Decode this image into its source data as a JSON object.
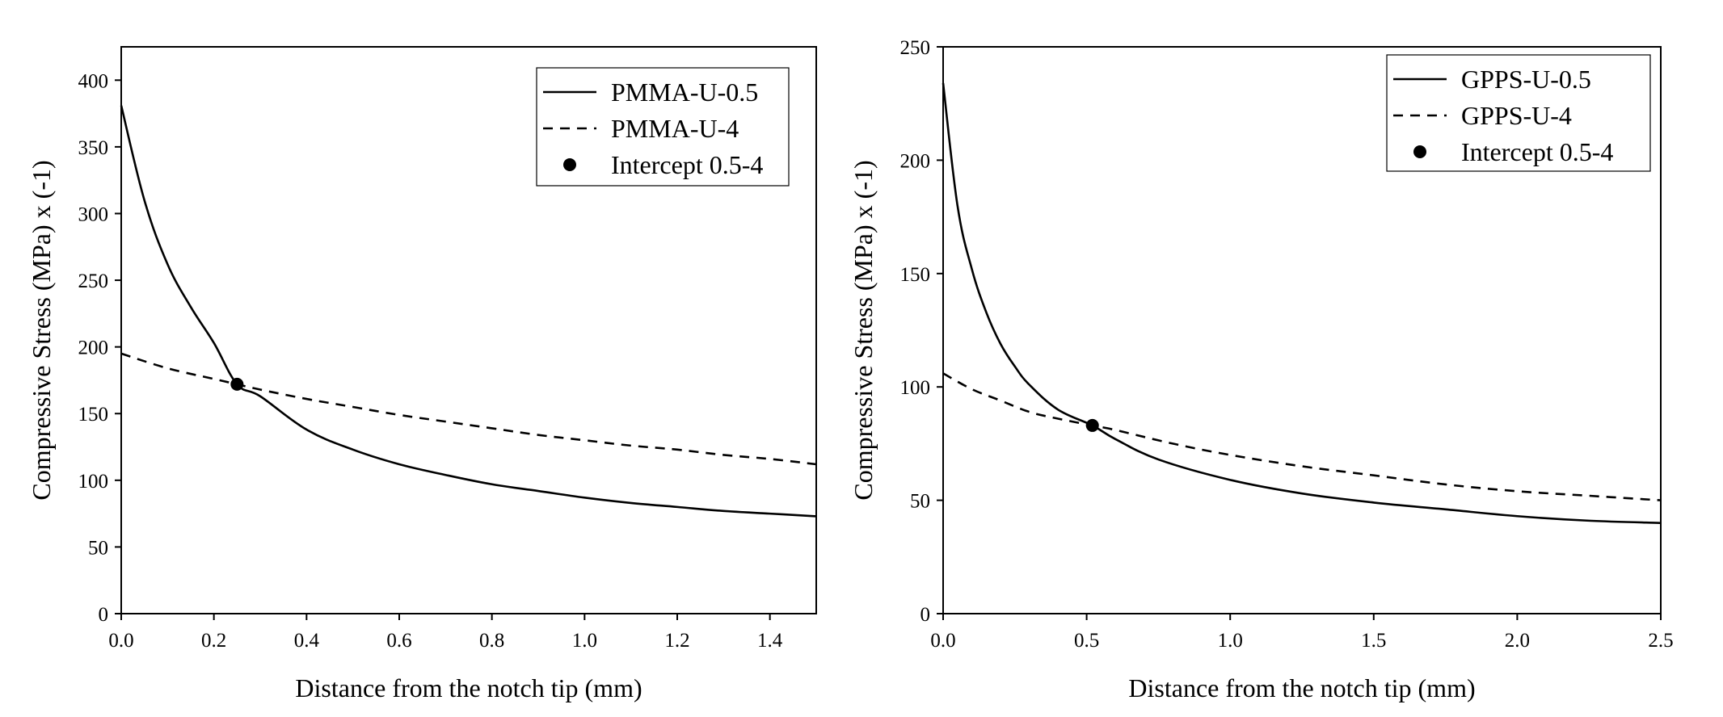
{
  "chart_data": [
    {
      "type": "line",
      "title": "",
      "xlabel": "Distance from the notch tip (mm)",
      "ylabel": "Compressive Stress (MPa) x (-1)",
      "xlim": [
        0,
        1.5
      ],
      "ylim": [
        0,
        425
      ],
      "xticks": [
        0.0,
        0.2,
        0.4,
        0.6,
        0.8,
        1.0,
        1.2,
        1.4
      ],
      "xtick_labels": [
        "0.0",
        "0.2",
        "0.4",
        "0.6",
        "0.8",
        "1.0",
        "1.2",
        "1.4"
      ],
      "yticks": [
        0,
        50,
        100,
        150,
        200,
        250,
        300,
        350,
        400
      ],
      "ytick_labels": [
        "0",
        "50",
        "100",
        "150",
        "200",
        "250",
        "300",
        "350",
        "400"
      ],
      "grid": false,
      "legend_position": "top-right",
      "series": [
        {
          "name": "PMMA-U-0.5",
          "style": "solid",
          "x": [
            0.0,
            0.05,
            0.1,
            0.15,
            0.2,
            0.25,
            0.3,
            0.4,
            0.5,
            0.6,
            0.7,
            0.8,
            0.9,
            1.0,
            1.1,
            1.2,
            1.3,
            1.4,
            1.5
          ],
          "y": [
            381,
            310,
            262,
            230,
            203,
            172,
            163,
            138,
            123,
            112,
            104,
            97,
            92,
            87,
            83,
            80,
            77,
            75,
            73
          ]
        },
        {
          "name": "PMMA-U-4",
          "style": "dashed",
          "x": [
            0.0,
            0.1,
            0.2,
            0.25,
            0.3,
            0.4,
            0.5,
            0.6,
            0.7,
            0.8,
            0.9,
            1.0,
            1.1,
            1.2,
            1.3,
            1.4,
            1.5
          ],
          "y": [
            195,
            184,
            176,
            172,
            168,
            161,
            155,
            149,
            144,
            139,
            134,
            130,
            126,
            123,
            119,
            116,
            112
          ]
        },
        {
          "name": "Intercept 0.5-4",
          "style": "marker",
          "x": [
            0.25
          ],
          "y": [
            172
          ]
        }
      ]
    },
    {
      "type": "line",
      "title": "",
      "xlabel": "Distance from the notch tip (mm)",
      "ylabel": "Compressive Stress (MPa) x (-1)",
      "xlim": [
        0,
        2.5
      ],
      "ylim": [
        0,
        250
      ],
      "xticks": [
        0.0,
        0.5,
        1.0,
        1.5,
        2.0,
        2.5
      ],
      "xtick_labels": [
        "0.0",
        "0.5",
        "1.0",
        "1.5",
        "2.0",
        "2.5"
      ],
      "yticks": [
        0,
        50,
        100,
        150,
        200,
        250
      ],
      "ytick_labels": [
        "0",
        "50",
        "100",
        "150",
        "200",
        "250"
      ],
      "grid": false,
      "legend_position": "top-right",
      "series": [
        {
          "name": "GPPS-U-0.5",
          "style": "solid",
          "x": [
            0.0,
            0.05,
            0.1,
            0.15,
            0.2,
            0.25,
            0.3,
            0.4,
            0.52,
            0.6,
            0.75,
            1.0,
            1.25,
            1.5,
            1.75,
            2.0,
            2.25,
            2.5
          ],
          "y": [
            234,
            180,
            152,
            133,
            119,
            109,
            101,
            90,
            83,
            77,
            68,
            59,
            53,
            49,
            46,
            43,
            41,
            40
          ]
        },
        {
          "name": "GPPS-U-4",
          "style": "dashed",
          "x": [
            0.0,
            0.1,
            0.2,
            0.3,
            0.4,
            0.52,
            0.6,
            0.8,
            1.0,
            1.25,
            1.5,
            1.75,
            2.0,
            2.25,
            2.5
          ],
          "y": [
            106,
            99,
            94,
            89,
            86,
            83,
            81,
            75,
            70,
            65,
            61,
            57,
            54,
            52,
            50
          ]
        },
        {
          "name": "Intercept 0.5-4",
          "style": "marker",
          "x": [
            0.52
          ],
          "y": [
            83
          ]
        }
      ]
    }
  ]
}
